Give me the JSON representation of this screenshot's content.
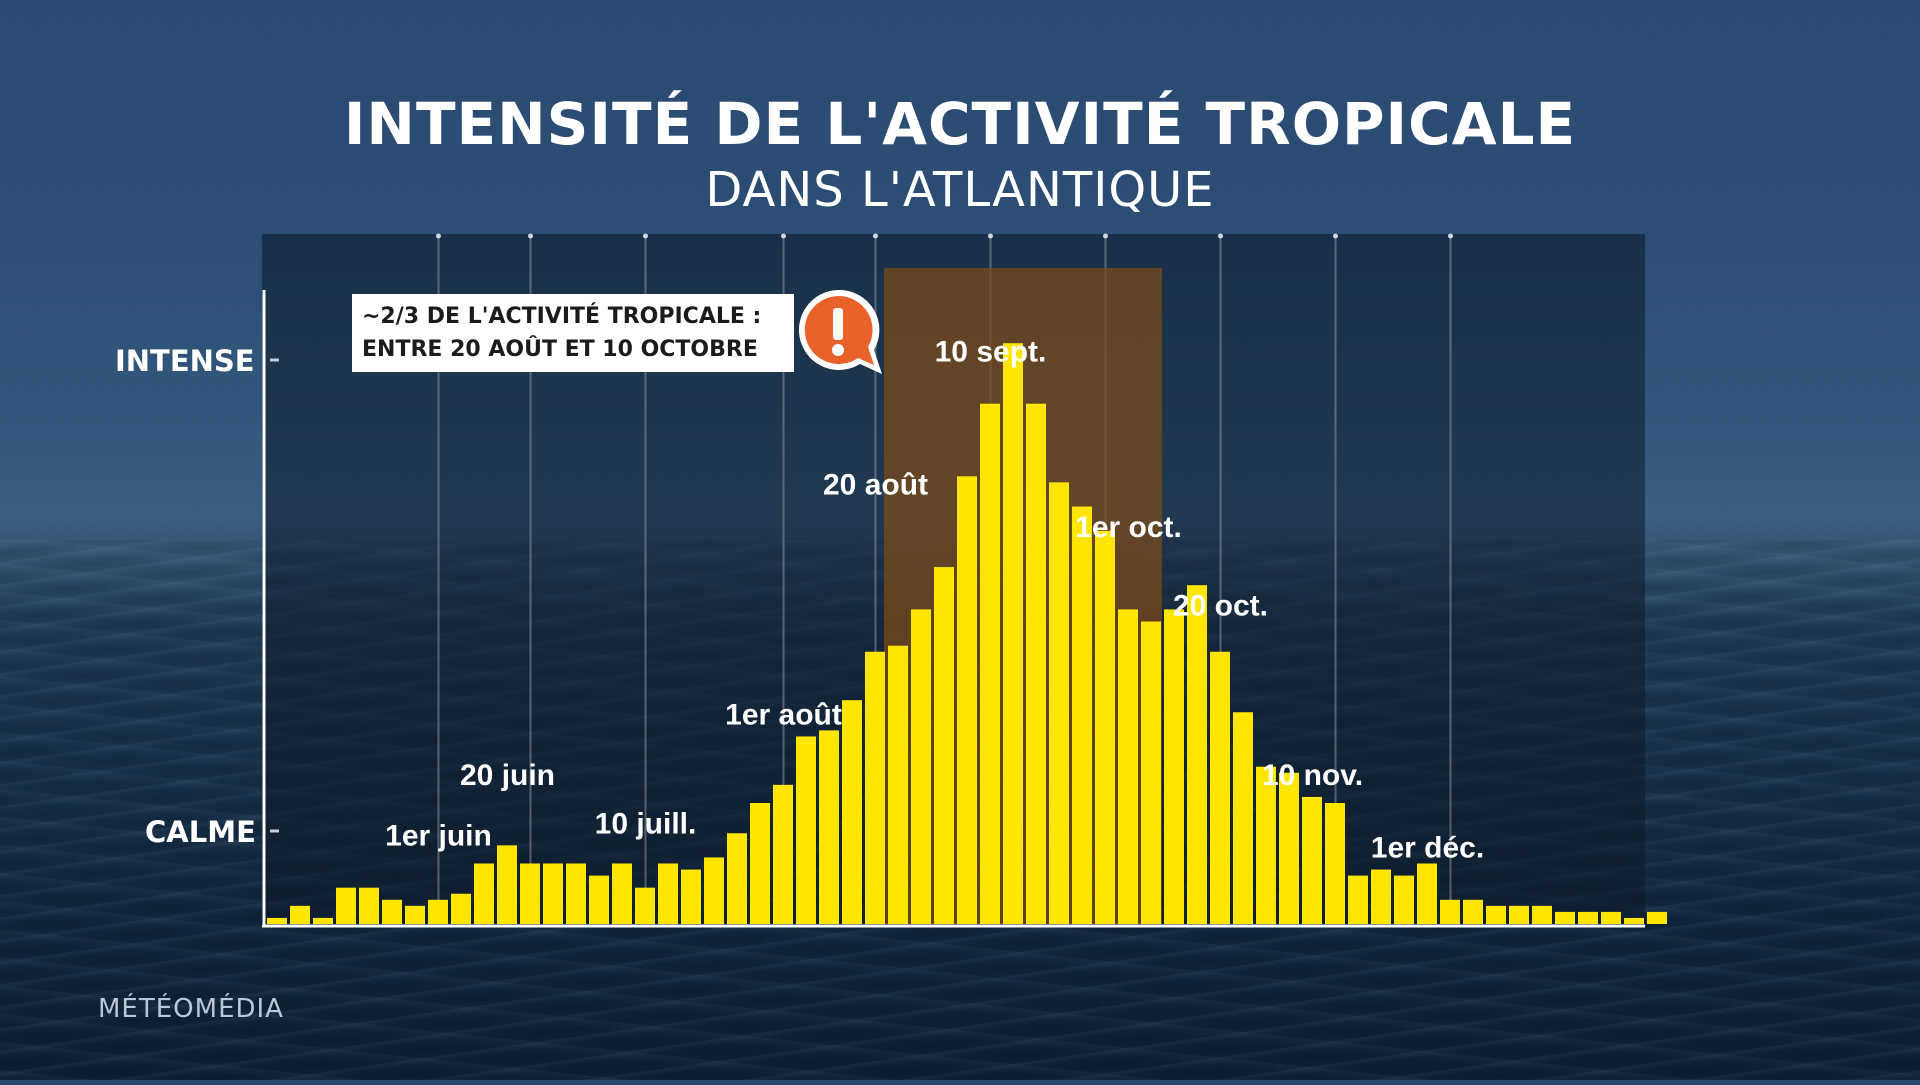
{
  "title": "INTENSITÉ DE L'ACTIVITÉ TROPICALE",
  "subtitle": "DANS L'ATLANTIQUE",
  "brand": "MÉTÉOMÉDIA",
  "colors": {
    "bar": "#ffe600",
    "highlight": "#7a4a1a",
    "accent": "#e8622a",
    "panel": "#0d1a28"
  },
  "callout": {
    "line1": "~2/3 DE L'ACTIVITÉ TROPICALE :",
    "line2": "ENTRE 20 AOÛT ET 10 OCTOBRE",
    "icon": "exclamation-bubble-icon"
  },
  "chart_data": {
    "type": "bar",
    "ylabel_ticks": [
      "INTENSE",
      "CALME"
    ],
    "ylim": [
      0,
      100
    ],
    "y_intense": 82,
    "y_calme": 13,
    "grid": "vertical",
    "values": [
      1,
      3,
      1,
      6,
      6,
      4,
      3,
      4,
      5,
      10,
      13,
      10,
      10,
      10,
      8,
      10,
      6,
      10,
      9,
      11,
      15,
      20,
      23,
      31,
      32,
      37,
      45,
      46,
      52,
      59,
      74,
      86,
      96,
      86,
      73,
      69,
      65,
      52,
      50,
      52,
      56,
      45,
      35,
      26,
      25,
      21,
      20,
      8,
      9,
      8,
      10,
      4,
      4,
      3,
      3,
      3,
      2,
      2,
      2,
      1,
      2
    ],
    "highlight_range": [
      "20 août",
      "10 oct."
    ],
    "annotations": [
      {
        "label": "1er juin",
        "index": 7,
        "value": 11
      },
      {
        "label": "20 juin",
        "index": 10,
        "value": 21
      },
      {
        "label": "10 juill.",
        "index": 16,
        "value": 13
      },
      {
        "label": "1er août",
        "index": 22,
        "value": 31
      },
      {
        "label": "20 août",
        "index": 26,
        "value": 69
      },
      {
        "label": "10 sept.",
        "index": 31,
        "value": 91
      },
      {
        "label": "1er oct.",
        "index": 37,
        "value": 62
      },
      {
        "label": "20 oct.",
        "index": 41,
        "value": 49
      },
      {
        "label": "10 nov.",
        "index": 45,
        "value": 21
      },
      {
        "label": "1er déc.",
        "index": 50,
        "value": 9
      }
    ]
  }
}
